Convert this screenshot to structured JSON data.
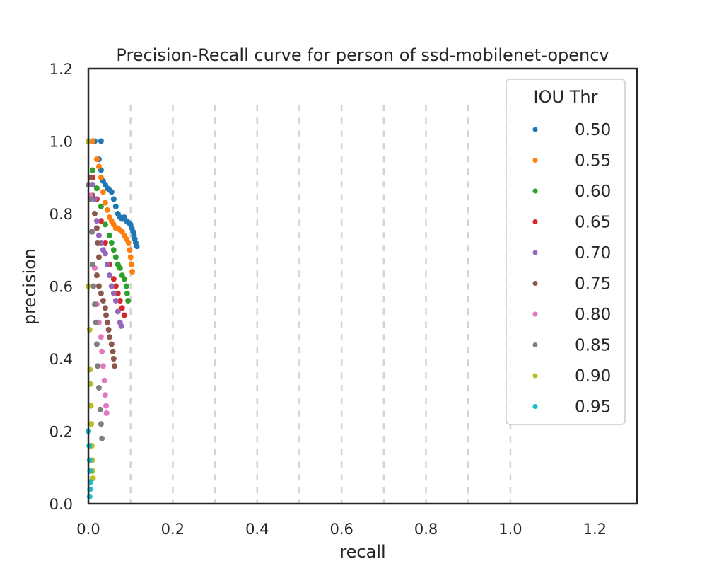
{
  "chart_data": {
    "type": "scatter",
    "title": "Precision-Recall curve for person of ssd-mobilenet-opencv",
    "xlabel": "recall",
    "ylabel": "precision",
    "xlim": [
      0.0,
      1.3
    ],
    "ylim": [
      0.0,
      1.2
    ],
    "x_ticks": [
      "0.0",
      "0.2",
      "0.4",
      "0.6",
      "0.8",
      "1.0",
      "1.2"
    ],
    "y_ticks": [
      "0.0",
      "0.2",
      "0.4",
      "0.6",
      "0.8",
      "1.0",
      "1.2"
    ],
    "grid": "vertical dashed lines at recall 0.1 to 1.0, up to precision 1.1",
    "legend": {
      "title": "IOU Thr",
      "placement": "top-right"
    },
    "series": [
      {
        "name": "0.50",
        "color": "#1f77b4",
        "points": [
          [
            0.0,
            1.0
          ],
          [
            0.015,
            1.0
          ],
          [
            0.03,
            1.0
          ],
          [
            0.025,
            0.95
          ],
          [
            0.03,
            0.92
          ],
          [
            0.035,
            0.89
          ],
          [
            0.04,
            0.88
          ],
          [
            0.045,
            0.87
          ],
          [
            0.05,
            0.865
          ],
          [
            0.055,
            0.86
          ],
          [
            0.06,
            0.84
          ],
          [
            0.065,
            0.82
          ],
          [
            0.07,
            0.8
          ],
          [
            0.075,
            0.79
          ],
          [
            0.08,
            0.785
          ],
          [
            0.085,
            0.79
          ],
          [
            0.09,
            0.78
          ],
          [
            0.095,
            0.775
          ],
          [
            0.1,
            0.77
          ],
          [
            0.103,
            0.76
          ],
          [
            0.106,
            0.75
          ],
          [
            0.108,
            0.74
          ],
          [
            0.11,
            0.73
          ],
          [
            0.112,
            0.72
          ],
          [
            0.115,
            0.71
          ]
        ]
      },
      {
        "name": "0.55",
        "color": "#ff7f0e",
        "points": [
          [
            0.0,
            1.0
          ],
          [
            0.01,
            1.0
          ],
          [
            0.02,
            0.95
          ],
          [
            0.025,
            0.93
          ],
          [
            0.03,
            0.9
          ],
          [
            0.035,
            0.86
          ],
          [
            0.04,
            0.83
          ],
          [
            0.045,
            0.81
          ],
          [
            0.05,
            0.79
          ],
          [
            0.055,
            0.78
          ],
          [
            0.06,
            0.77
          ],
          [
            0.065,
            0.76
          ],
          [
            0.07,
            0.76
          ],
          [
            0.075,
            0.755
          ],
          [
            0.08,
            0.75
          ],
          [
            0.085,
            0.74
          ],
          [
            0.09,
            0.73
          ],
          [
            0.095,
            0.72
          ],
          [
            0.098,
            0.7
          ],
          [
            0.1,
            0.68
          ],
          [
            0.102,
            0.66
          ],
          [
            0.104,
            0.64
          ]
        ]
      },
      {
        "name": "0.60",
        "color": "#2ca02c",
        "points": [
          [
            0.0,
            1.0
          ],
          [
            0.01,
            0.92
          ],
          [
            0.02,
            0.87
          ],
          [
            0.03,
            0.82
          ],
          [
            0.04,
            0.77
          ],
          [
            0.05,
            0.74
          ],
          [
            0.055,
            0.72
          ],
          [
            0.06,
            0.7
          ],
          [
            0.065,
            0.68
          ],
          [
            0.07,
            0.66
          ],
          [
            0.075,
            0.65
          ],
          [
            0.08,
            0.63
          ],
          [
            0.085,
            0.62
          ],
          [
            0.09,
            0.6
          ],
          [
            0.092,
            0.58
          ],
          [
            0.094,
            0.56
          ]
        ]
      },
      {
        "name": "0.65",
        "color": "#d62728",
        "points": [
          [
            0.0,
            1.0
          ],
          [
            0.01,
            0.9
          ],
          [
            0.02,
            0.84
          ],
          [
            0.03,
            0.78
          ],
          [
            0.04,
            0.72
          ],
          [
            0.05,
            0.66
          ],
          [
            0.06,
            0.62
          ],
          [
            0.065,
            0.6
          ],
          [
            0.07,
            0.58
          ],
          [
            0.075,
            0.56
          ],
          [
            0.08,
            0.54
          ],
          [
            0.085,
            0.52
          ]
        ]
      },
      {
        "name": "0.70",
        "color": "#9467bd",
        "points": [
          [
            0.0,
            1.0
          ],
          [
            0.01,
            0.88
          ],
          [
            0.015,
            0.84
          ],
          [
            0.02,
            0.78
          ],
          [
            0.025,
            0.74
          ],
          [
            0.03,
            0.72
          ],
          [
            0.035,
            0.7
          ],
          [
            0.04,
            0.69
          ],
          [
            0.045,
            0.66
          ],
          [
            0.05,
            0.63
          ],
          [
            0.055,
            0.6
          ],
          [
            0.06,
            0.58
          ],
          [
            0.065,
            0.56
          ],
          [
            0.07,
            0.53
          ],
          [
            0.075,
            0.5
          ],
          [
            0.078,
            0.49
          ]
        ]
      },
      {
        "name": "0.75",
        "color": "#8c564b",
        "points": [
          [
            0.0,
            1.0
          ],
          [
            0.005,
            0.9
          ],
          [
            0.01,
            0.85
          ],
          [
            0.015,
            0.8
          ],
          [
            0.02,
            0.76
          ],
          [
            0.022,
            0.72
          ],
          [
            0.025,
            0.68
          ],
          [
            0.02,
            0.63
          ],
          [
            0.025,
            0.6
          ],
          [
            0.03,
            0.58
          ],
          [
            0.035,
            0.56
          ],
          [
            0.04,
            0.54
          ],
          [
            0.042,
            0.52
          ],
          [
            0.045,
            0.5
          ],
          [
            0.048,
            0.48
          ],
          [
            0.05,
            0.46
          ],
          [
            0.055,
            0.44
          ],
          [
            0.058,
            0.42
          ],
          [
            0.06,
            0.4
          ],
          [
            0.062,
            0.38
          ]
        ]
      },
      {
        "name": "0.80",
        "color": "#e377c2",
        "points": [
          [
            0.0,
            1.0
          ],
          [
            0.005,
            0.85
          ],
          [
            0.01,
            0.75
          ],
          [
            0.015,
            0.65
          ],
          [
            0.02,
            0.55
          ],
          [
            0.025,
            0.5
          ],
          [
            0.03,
            0.46
          ],
          [
            0.032,
            0.42
          ],
          [
            0.035,
            0.38
          ],
          [
            0.038,
            0.34
          ],
          [
            0.04,
            0.3
          ],
          [
            0.042,
            0.27
          ],
          [
            0.043,
            0.25
          ]
        ]
      },
      {
        "name": "0.85",
        "color": "#7f7f7f",
        "points": [
          [
            0.0,
            0.88
          ],
          [
            0.005,
            0.84
          ],
          [
            0.008,
            0.75
          ],
          [
            0.01,
            0.66
          ],
          [
            0.012,
            0.6
          ],
          [
            0.015,
            0.55
          ],
          [
            0.018,
            0.5
          ],
          [
            0.02,
            0.44
          ],
          [
            0.022,
            0.38
          ],
          [
            0.025,
            0.32
          ],
          [
            0.028,
            0.26
          ],
          [
            0.03,
            0.22
          ],
          [
            0.032,
            0.18
          ]
        ]
      },
      {
        "name": "0.90",
        "color": "#bcbd22",
        "points": [
          [
            0.0,
            1.0
          ],
          [
            0.0,
            0.6
          ],
          [
            0.003,
            0.48
          ],
          [
            0.004,
            0.37
          ],
          [
            0.005,
            0.33
          ],
          [
            0.006,
            0.27
          ],
          [
            0.007,
            0.22
          ],
          [
            0.008,
            0.16
          ],
          [
            0.009,
            0.12
          ],
          [
            0.01,
            0.09
          ],
          [
            0.011,
            0.07
          ]
        ]
      },
      {
        "name": "0.95",
        "color": "#17becf",
        "points": [
          [
            0.0,
            0.2
          ],
          [
            0.002,
            0.16
          ],
          [
            0.003,
            0.12
          ],
          [
            0.004,
            0.09
          ],
          [
            0.005,
            0.06
          ],
          [
            0.004,
            0.04
          ],
          [
            0.003,
            0.02
          ]
        ]
      }
    ]
  }
}
